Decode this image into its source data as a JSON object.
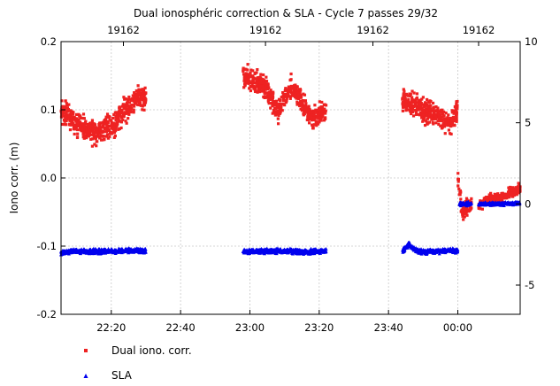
{
  "chart_data": {
    "type": "scatter",
    "title": "Dual ionosphéric correction & SLA - Cycle 7 passes 29/32",
    "ylabel": "Iono corr. (m)",
    "xlabel": "",
    "x_unit": "minutes from 22:00",
    "xlim": [
      5.5,
      138
    ],
    "ylim": [
      -0.2,
      0.2
    ],
    "y2lim": [
      -6.8,
      10
    ],
    "x_ticks": [
      {
        "value": 20,
        "label": "22:20"
      },
      {
        "value": 40,
        "label": "22:40"
      },
      {
        "value": 60,
        "label": "23:00"
      },
      {
        "value": 80,
        "label": "23:20"
      },
      {
        "value": 100,
        "label": "23:40"
      },
      {
        "value": 120,
        "label": "00:00"
      }
    ],
    "y_ticks": [
      {
        "value": 0.2,
        "label": "0.2"
      },
      {
        "value": 0.1,
        "label": "0.1"
      },
      {
        "value": 0.0,
        "label": "0.0"
      },
      {
        "value": -0.1,
        "label": "-0.1"
      },
      {
        "value": -0.2,
        "label": "-0.2"
      }
    ],
    "y2_ticks": [
      {
        "value": 10,
        "label": "10"
      },
      {
        "value": 5,
        "label": "5"
      },
      {
        "value": 0,
        "label": "0"
      },
      {
        "value": -5,
        "label": "-5"
      }
    ],
    "top_ticks": [
      {
        "value": 23.5,
        "label": "19162"
      },
      {
        "value": 64.5,
        "label": "19162"
      },
      {
        "value": 95.5,
        "label": "19162"
      },
      {
        "value": 126,
        "label": "19162"
      }
    ],
    "grid": true,
    "legend_position": "bottom-left",
    "series": [
      {
        "name": "Dual iono. corr.",
        "color": "#ee2222",
        "marker": "square",
        "segments": [
          {
            "x": [
              5.5,
              8,
              10,
              12,
              14,
              16,
              18,
              20,
              22,
              24,
              26,
              28,
              30
            ],
            "y": [
              0.1,
              0.09,
              0.08,
              0.075,
              0.07,
              0.065,
              0.07,
              0.075,
              0.085,
              0.1,
              0.11,
              0.12,
              0.115
            ],
            "spread": 0.018
          },
          {
            "x": [
              58,
              60,
              62,
              64,
              66,
              68,
              70,
              72,
              74,
              76,
              78,
              80,
              82
            ],
            "y": [
              0.15,
              0.145,
              0.14,
              0.135,
              0.12,
              0.095,
              0.12,
              0.135,
              0.12,
              0.1,
              0.085,
              0.095,
              0.1
            ],
            "spread": 0.016
          },
          {
            "x": [
              104,
              106,
              108,
              110,
              112,
              114,
              116,
              118,
              120
            ],
            "y": [
              0.115,
              0.11,
              0.105,
              0.1,
              0.095,
              0.09,
              0.085,
              0.08,
              0.1
            ],
            "spread": 0.017
          },
          {
            "x": [
              120,
              120.5,
              121,
              121.5,
              122,
              123,
              124
            ],
            "y": [
              0.0,
              -0.02,
              -0.04,
              -0.05,
              -0.045,
              -0.04,
              -0.04
            ],
            "spread": 0.012
          },
          {
            "x": [
              126,
              128,
              130,
              132,
              134,
              136,
              138
            ],
            "y": [
              -0.04,
              -0.035,
              -0.03,
              -0.03,
              -0.025,
              -0.02,
              -0.015
            ],
            "spread": 0.008
          }
        ]
      },
      {
        "name": "SLA",
        "color": "#0000ee",
        "marker": "triangle",
        "segments": [
          {
            "x": [
              5.5,
              10,
              15,
              20,
              25,
              30
            ],
            "y": [
              -3.0,
              -2.9,
              -2.95,
              -2.9,
              -2.85,
              -2.9
            ],
            "spread": 0.15
          },
          {
            "x": [
              58,
              64,
              70,
              76,
              82
            ],
            "y": [
              -2.95,
              -2.9,
              -2.9,
              -2.95,
              -2.9
            ],
            "spread": 0.15
          },
          {
            "x": [
              104,
              106,
              108,
              110,
              114,
              118,
              120
            ],
            "y": [
              -2.9,
              -2.5,
              -2.9,
              -2.95,
              -2.9,
              -2.85,
              -2.9
            ],
            "spread": 0.15
          },
          {
            "x": [
              120.5,
              122,
              124
            ],
            "y": [
              0.0,
              0.0,
              0.0
            ],
            "spread": 0.12
          },
          {
            "x": [
              126,
              132,
              138
            ],
            "y": [
              0.0,
              0.0,
              0.05
            ],
            "spread": 0.1
          }
        ]
      }
    ]
  }
}
